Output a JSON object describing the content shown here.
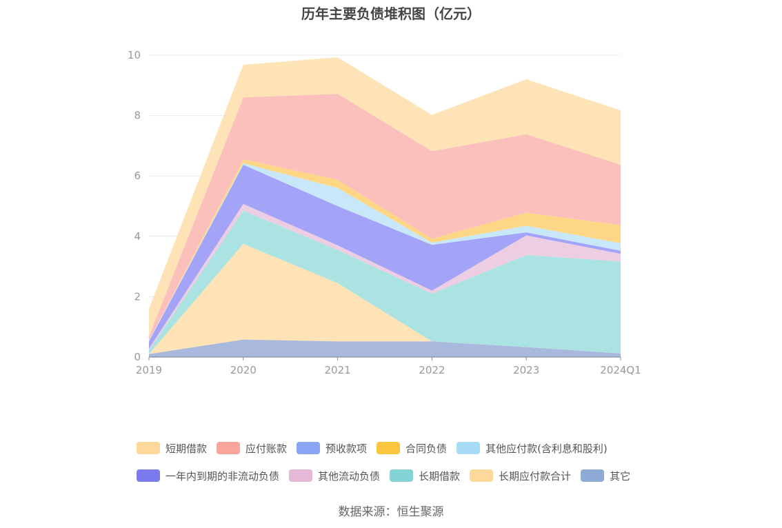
{
  "chart_data": {
    "type": "area",
    "stacked": true,
    "title": "历年主要负债堆积图（亿元）",
    "source": "数据来源：恒生聚源",
    "categories": [
      "2019",
      "2020",
      "2021",
      "2022",
      "2023",
      "2024Q1"
    ],
    "ylim": [
      0,
      10
    ],
    "yticks": [
      "0",
      "2",
      "4",
      "6",
      "8",
      "10"
    ],
    "grid": true,
    "legend_position": "bottom",
    "series": [
      {
        "name": "其它",
        "color": "#a9b9dd",
        "values": [
          0.1,
          0.58,
          0.52,
          0.52,
          0.33,
          0.12
        ]
      },
      {
        "name": "长期应付款合计",
        "color": "#fde3b6",
        "values": [
          0.0,
          3.17,
          1.93,
          0.0,
          0.0,
          0.0
        ]
      },
      {
        "name": "长期借款",
        "color": "#abe2e2",
        "values": [
          0.12,
          1.1,
          1.1,
          1.58,
          3.05,
          3.05
        ]
      },
      {
        "name": "其他流动负债",
        "color": "#eccde2",
        "values": [
          0.06,
          0.22,
          0.15,
          0.1,
          0.65,
          0.25
        ]
      },
      {
        "name": "一年内到期的非流动负债",
        "color": "#a3a3f8",
        "values": [
          0.24,
          1.3,
          1.3,
          1.52,
          0.1,
          0.1
        ]
      },
      {
        "name": "其他应付款(含利息和股利)",
        "color": "#c8e8fa",
        "values": [
          0.02,
          0.05,
          0.6,
          0.07,
          0.22,
          0.25
        ]
      },
      {
        "name": "合同负债",
        "color": "#fdd786",
        "values": [
          0.0,
          0.13,
          0.27,
          0.13,
          0.43,
          0.6
        ]
      },
      {
        "name": "预收款项",
        "color": "#b8c8f8",
        "values": [
          0.0,
          0.0,
          0.0,
          0.0,
          0.0,
          0.0
        ]
      },
      {
        "name": "应付账款",
        "color": "#fbc0bb",
        "values": [
          0.14,
          2.05,
          2.85,
          2.9,
          2.6,
          2.0
        ]
      },
      {
        "name": "短期借款",
        "color": "#fde3b6",
        "values": [
          0.92,
          1.08,
          1.21,
          1.2,
          1.82,
          1.8
        ]
      }
    ],
    "legend": [
      [
        {
          "name": "短期借款",
          "color": "#fdd89a"
        },
        {
          "name": "应付账款",
          "color": "#f9a59b"
        },
        {
          "name": "预收款项",
          "color": "#8aa5f3"
        },
        {
          "name": "合同负债",
          "color": "#fcc53e"
        },
        {
          "name": "其他应付款(含利息和股利)",
          "color": "#a8dcf6"
        }
      ],
      [
        {
          "name": "一年内到期的非流动负债",
          "color": "#7b7bee"
        },
        {
          "name": "其他流动负债",
          "color": "#e7b7d7"
        },
        {
          "name": "长期借款",
          "color": "#84d3d6"
        },
        {
          "name": "长期应付款合计",
          "color": "#fdd89a"
        },
        {
          "name": "其它",
          "color": "#8eabd8"
        }
      ]
    ]
  }
}
